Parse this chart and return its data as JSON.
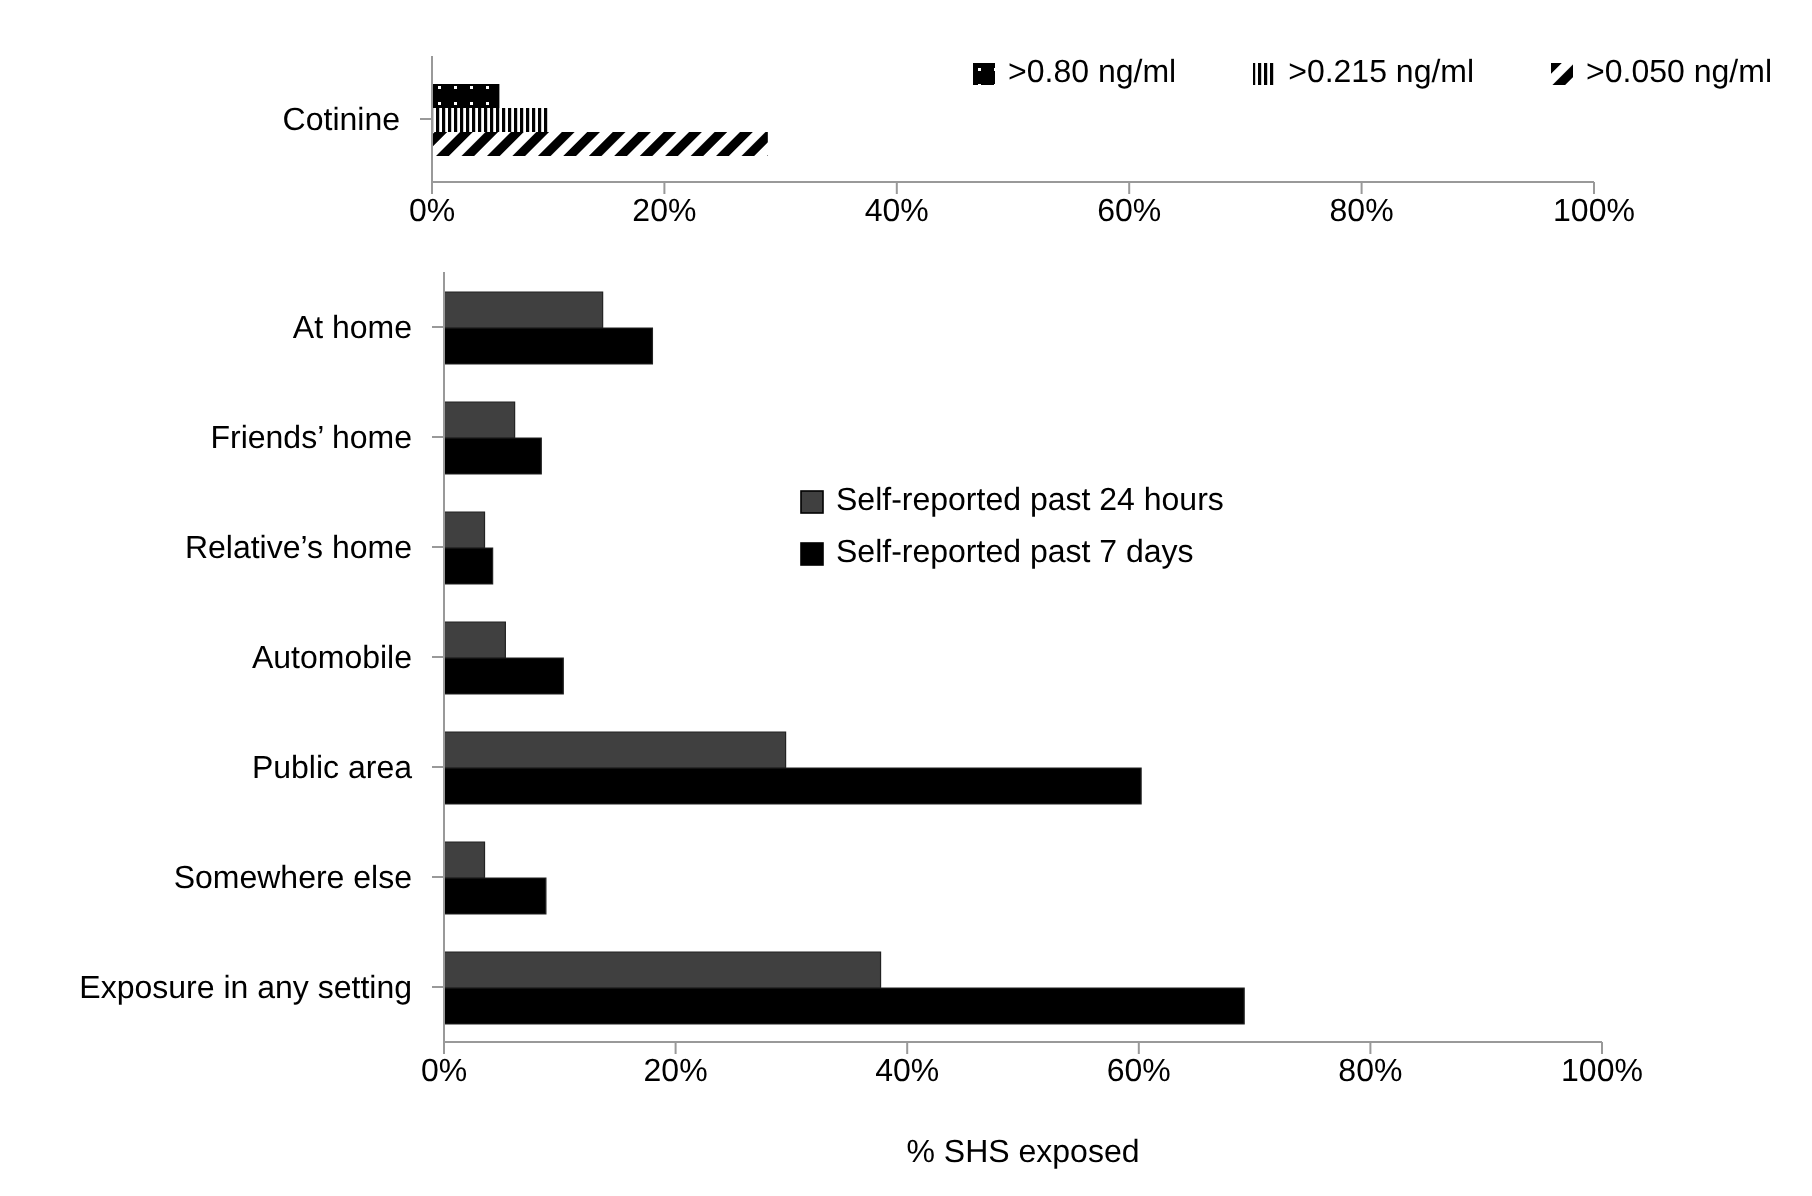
{
  "chart_data": [
    {
      "type": "bar",
      "orientation": "horizontal",
      "categories": [
        "Cotinine"
      ],
      "series": [
        {
          "name": ">0.80 ng/ml",
          "color": "#000000",
          "values": [
            5.8
          ]
        },
        {
          "name": ">0.215 ng/ml",
          "color": "#000000",
          "values": [
            10.0
          ]
        },
        {
          "name": ">0.050 ng/ml",
          "color": "#000000",
          "values": [
            28.9
          ]
        }
      ],
      "xlim": [
        0,
        100
      ],
      "xticks": [
        {
          "value": 0,
          "label": "0%"
        },
        {
          "value": 20,
          "label": "20%"
        },
        {
          "value": 40,
          "label": "40%"
        },
        {
          "value": 60,
          "label": "60%"
        },
        {
          "value": 80,
          "label": "80%"
        },
        {
          "value": 100,
          "label": "100%"
        }
      ],
      "grid": false,
      "legend": "top right"
    },
    {
      "type": "bar",
      "orientation": "horizontal",
      "categories": [
        "At home",
        "Friends’ home",
        "Relative’s home",
        "Automobile",
        "Public area",
        "Somewhere else",
        "Exposure in any setting"
      ],
      "series": [
        {
          "name": "Self-reported past 24 hours",
          "color": "#404040",
          "values": [
            13.7,
            6.1,
            3.5,
            5.3,
            29.5,
            3.5,
            37.7
          ]
        },
        {
          "name": "Self-reported past 7 days",
          "color": "#000000",
          "values": [
            18.0,
            8.4,
            4.2,
            10.3,
            60.2,
            8.8,
            69.1
          ]
        }
      ],
      "xlim": [
        0,
        100
      ],
      "xticks": [
        {
          "value": 0,
          "label": "0%"
        },
        {
          "value": 20,
          "label": "20%"
        },
        {
          "value": 40,
          "label": "40%"
        },
        {
          "value": 60,
          "label": "60%"
        },
        {
          "value": 80,
          "label": "80%"
        },
        {
          "value": 100,
          "label": "100%"
        }
      ],
      "xlabel": "% SHS exposed",
      "grid": false,
      "legend": "right"
    }
  ]
}
